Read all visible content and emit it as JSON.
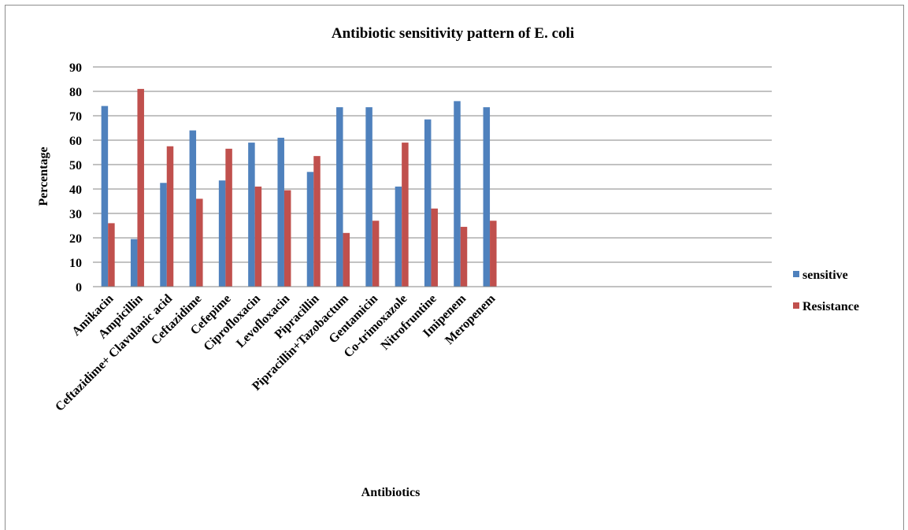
{
  "chart_data": {
    "type": "bar",
    "title": "Antibiotic sensitivity pattern of E. coli",
    "xlabel": "Antibiotics",
    "ylabel": "Percentage",
    "ylim": [
      0,
      90
    ],
    "yticks": [
      0,
      10,
      20,
      30,
      40,
      50,
      60,
      70,
      80,
      90
    ],
    "grid": true,
    "legend_position": "right",
    "categories": [
      "Amikacin",
      "Ampicillin",
      "Ceftazidime+ Clavulanic acid",
      "Ceftazidime",
      "Cefepime",
      "Ciprofloxacin",
      "Levofloxacin",
      "Pipracillin",
      "Pipracillin+Tazobactum",
      "Gentamicin",
      "Co-trimoxazole",
      "Nitrofruntine",
      "Imipenem",
      "Meropenem"
    ],
    "series": [
      {
        "name": "sensitive",
        "color": "#4F81BD",
        "values": [
          74,
          19.5,
          42.5,
          64,
          43.5,
          59,
          61,
          47,
          73.5,
          73.5,
          41,
          68.5,
          76,
          73.5
        ]
      },
      {
        "name": "Resistance",
        "color": "#C0504D",
        "values": [
          26,
          81,
          57.5,
          36,
          56.5,
          41,
          39.5,
          53.5,
          22,
          27,
          59,
          32,
          24.5,
          27
        ]
      }
    ]
  }
}
